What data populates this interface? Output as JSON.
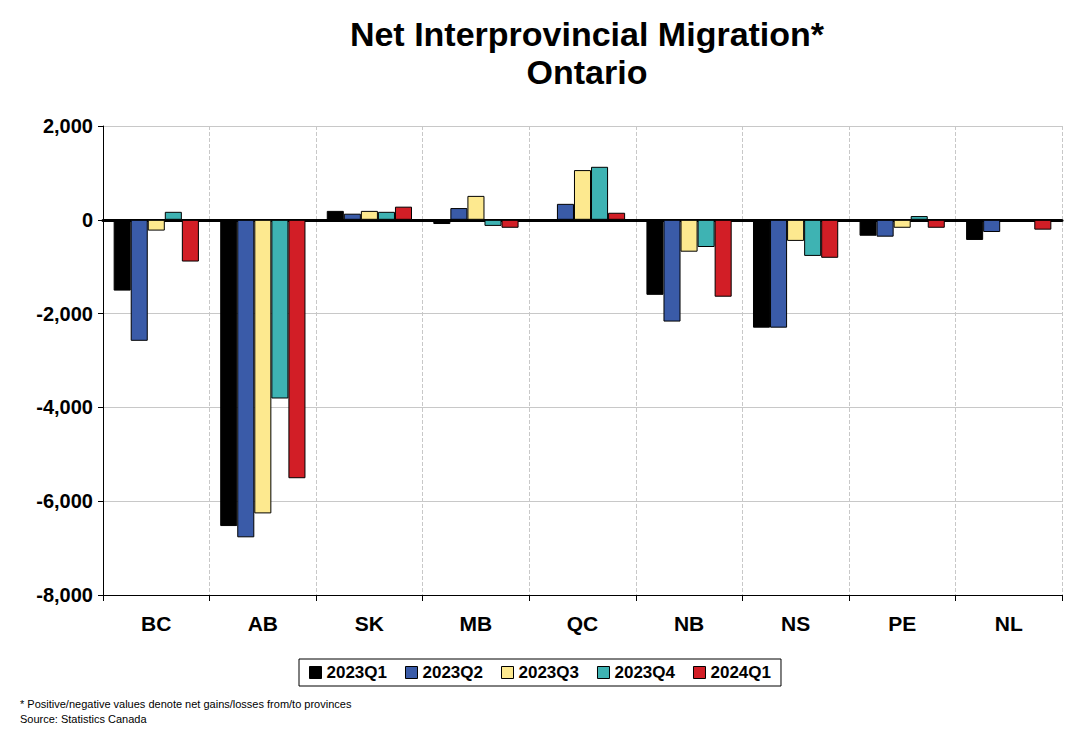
{
  "chart_data": {
    "type": "bar",
    "title": "Net Interprovincial Migration*",
    "subtitle": "Ontario",
    "annotations": [
      "* Positive/negative values denote net gains/losses from/to provinces",
      "Source: Statistics Canada"
    ],
    "categories": [
      "BC",
      "AB",
      "SK",
      "MB",
      "QC",
      "NB",
      "NS",
      "PE",
      "NL"
    ],
    "series": [
      {
        "name": "2023Q1",
        "color": "#000000",
        "values": [
          -1510,
          -6530,
          190,
          -90,
          -30,
          -1600,
          -2300,
          -340,
          -430
        ]
      },
      {
        "name": "2023Q2",
        "color": "#3a5ba8",
        "values": [
          -2580,
          -6770,
          130,
          250,
          340,
          -2170,
          -2300,
          -360,
          -260
        ]
      },
      {
        "name": "2023Q3",
        "color": "#fde98f",
        "values": [
          -230,
          -6260,
          190,
          510,
          1060,
          -680,
          -450,
          -170,
          0
        ]
      },
      {
        "name": "2023Q4",
        "color": "#3eb3b3",
        "values": [
          170,
          -3810,
          170,
          -130,
          1130,
          -580,
          -770,
          80,
          0
        ]
      },
      {
        "name": "2024Q1",
        "color": "#d21e26",
        "values": [
          -890,
          -5510,
          280,
          -170,
          150,
          -1640,
          -810,
          -170,
          -210
        ]
      }
    ],
    "ylim": [
      -8000,
      2000
    ],
    "yticks": [
      {
        "value": -8000,
        "label": "-8,000"
      },
      {
        "value": -6000,
        "label": "-6,000"
      },
      {
        "value": -4000,
        "label": "-4,000"
      },
      {
        "value": -2000,
        "label": "-2,000"
      },
      0,
      {
        "value": 2000,
        "label": "2,000"
      }
    ],
    "grid": true,
    "legend": "bottom"
  }
}
